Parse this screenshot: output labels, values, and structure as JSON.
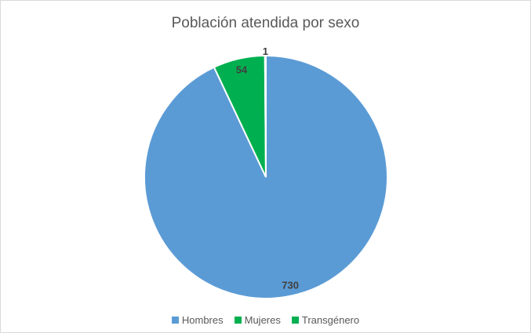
{
  "chart_data": {
    "type": "pie",
    "title": "Población atendida por sexo",
    "categories": [
      "Hombres",
      "Mujeres",
      "Transgénero"
    ],
    "values": [
      730,
      54,
      1
    ],
    "colors": [
      "#5b9bd5",
      "#00b050",
      "#00b050"
    ],
    "data_labels": [
      "730",
      "54",
      "1"
    ],
    "legend_position": "bottom"
  }
}
